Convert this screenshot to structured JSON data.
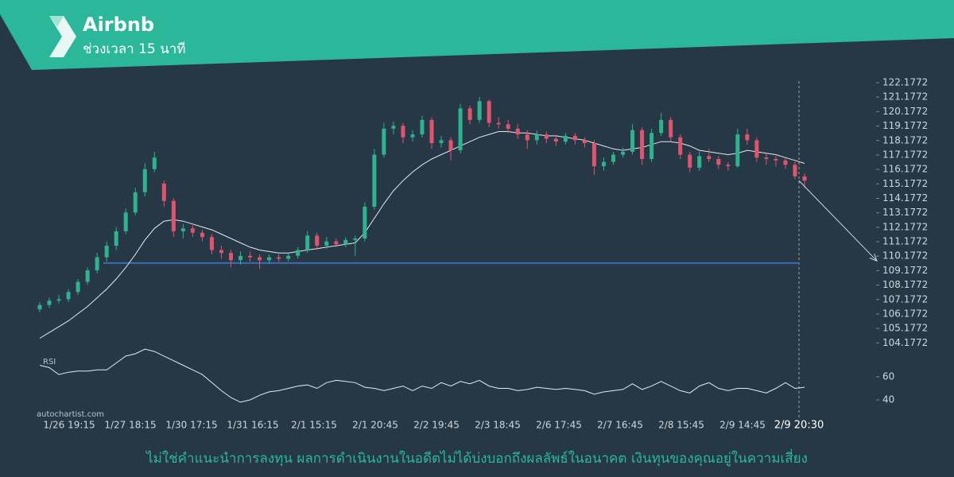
{
  "chart_data": {
    "type": "candlestick",
    "title": "Airbnb",
    "subtitle": "ช่วงเวลา 15 นาที",
    "ylim": [
      103.7,
      122.4
    ],
    "yticks": [
      104.1772,
      105.1772,
      106.1772,
      107.1772,
      108.1772,
      109.1772,
      110.1772,
      111.1772,
      112.1772,
      113.1772,
      114.1772,
      115.1772,
      116.1772,
      117.1772,
      118.1772,
      119.1772,
      120.1772,
      121.1772,
      122.1772
    ],
    "time_labels": [
      "1/26 19:15",
      "1/27 18:15",
      "1/30 17:15",
      "1/31 16:15",
      "2/1 15:15",
      "2/1 20:45",
      "2/2 19:45",
      "2/3 18:45",
      "2/6 17:45",
      "2/7 16:45",
      "2/8 15:45",
      "2/9 14:45"
    ],
    "current_time": "2/9 20:30",
    "up_color": "#2fb38f",
    "down_color": "#e0546d",
    "candles": [
      [
        106.5,
        107.0,
        106.3,
        106.8
      ],
      [
        106.8,
        107.3,
        106.6,
        107.1
      ],
      [
        107.1,
        107.5,
        106.9,
        107.2
      ],
      [
        107.2,
        107.9,
        107.0,
        107.7
      ],
      [
        107.7,
        108.6,
        107.5,
        108.4
      ],
      [
        108.4,
        109.4,
        108.2,
        109.2
      ],
      [
        109.2,
        110.4,
        109.0,
        110.1
      ],
      [
        110.1,
        111.2,
        109.8,
        110.9
      ],
      [
        110.9,
        112.2,
        110.6,
        111.9
      ],
      [
        111.9,
        113.5,
        111.7,
        113.2
      ],
      [
        113.2,
        114.9,
        113.0,
        114.6
      ],
      [
        114.6,
        116.6,
        114.3,
        116.2
      ],
      [
        116.2,
        117.4,
        116.0,
        117.0
      ],
      [
        115.2,
        115.4,
        113.6,
        114.0
      ],
      [
        114.0,
        114.2,
        111.5,
        111.9
      ],
      [
        111.9,
        112.4,
        111.4,
        112.1
      ],
      [
        112.1,
        112.3,
        111.5,
        111.8
      ],
      [
        111.8,
        112.0,
        111.2,
        111.5
      ],
      [
        111.5,
        111.7,
        110.3,
        110.6
      ],
      [
        110.6,
        110.9,
        110.0,
        110.4
      ],
      [
        110.4,
        110.6,
        109.4,
        109.9
      ],
      [
        109.9,
        110.5,
        109.6,
        110.2
      ],
      [
        110.2,
        110.5,
        109.8,
        110.1
      ],
      [
        110.1,
        110.3,
        109.3,
        109.9
      ],
      [
        109.9,
        110.3,
        109.7,
        110.1
      ],
      [
        110.1,
        110.3,
        109.8,
        110.0
      ],
      [
        110.0,
        110.4,
        109.8,
        110.2
      ],
      [
        110.2,
        110.8,
        110.0,
        110.6
      ],
      [
        110.6,
        111.9,
        110.4,
        111.6
      ],
      [
        111.6,
        111.8,
        110.6,
        110.9
      ],
      [
        110.9,
        111.5,
        110.7,
        111.2
      ],
      [
        111.2,
        111.4,
        110.8,
        111.0
      ],
      [
        111.0,
        111.5,
        110.8,
        111.3
      ],
      [
        111.3,
        111.6,
        110.2,
        111.4
      ],
      [
        111.4,
        113.9,
        111.2,
        113.6
      ],
      [
        113.6,
        117.6,
        113.4,
        117.2
      ],
      [
        117.2,
        119.4,
        117.0,
        119.0
      ],
      [
        119.0,
        119.5,
        118.6,
        119.2
      ],
      [
        119.2,
        119.4,
        118.0,
        118.4
      ],
      [
        118.4,
        118.9,
        118.1,
        118.6
      ],
      [
        118.6,
        119.9,
        118.4,
        119.6
      ],
      [
        119.6,
        119.8,
        117.6,
        118.0
      ],
      [
        118.0,
        118.5,
        117.7,
        118.2
      ],
      [
        118.2,
        118.4,
        116.8,
        117.5
      ],
      [
        117.5,
        120.7,
        117.3,
        120.4
      ],
      [
        120.4,
        120.6,
        119.3,
        119.6
      ],
      [
        119.6,
        121.2,
        119.4,
        120.9
      ],
      [
        120.9,
        121.0,
        119.1,
        119.4
      ],
      [
        119.4,
        119.8,
        119.0,
        119.3
      ],
      [
        119.3,
        119.6,
        118.7,
        119.0
      ],
      [
        119.0,
        119.3,
        118.3,
        118.6
      ],
      [
        118.6,
        118.9,
        117.6,
        118.2
      ],
      [
        118.2,
        118.9,
        117.9,
        118.6
      ],
      [
        118.6,
        118.8,
        118.0,
        118.3
      ],
      [
        118.3,
        118.5,
        117.8,
        118.1
      ],
      [
        118.1,
        118.7,
        117.9,
        118.5
      ],
      [
        118.5,
        118.7,
        117.9,
        118.2
      ],
      [
        118.2,
        118.4,
        117.7,
        118.0
      ],
      [
        118.0,
        118.2,
        115.8,
        116.4
      ],
      [
        116.4,
        117.0,
        116.1,
        116.7
      ],
      [
        116.7,
        117.4,
        116.5,
        117.2
      ],
      [
        117.2,
        117.7,
        117.0,
        117.4
      ],
      [
        117.4,
        119.3,
        117.2,
        118.9
      ],
      [
        118.9,
        119.1,
        116.5,
        116.9
      ],
      [
        116.9,
        119.0,
        116.7,
        118.7
      ],
      [
        118.7,
        120.1,
        118.5,
        119.6
      ],
      [
        119.6,
        119.8,
        118.1,
        118.4
      ],
      [
        118.4,
        118.6,
        116.9,
        117.2
      ],
      [
        117.2,
        117.4,
        116.0,
        116.3
      ],
      [
        116.3,
        117.4,
        116.1,
        117.1
      ],
      [
        117.1,
        117.6,
        116.7,
        116.9
      ],
      [
        116.9,
        117.1,
        116.2,
        116.5
      ],
      [
        116.5,
        116.7,
        116.1,
        116.4
      ],
      [
        116.4,
        119.0,
        116.3,
        118.6
      ],
      [
        118.6,
        119.0,
        117.9,
        118.2
      ],
      [
        118.2,
        118.4,
        116.7,
        117.0
      ],
      [
        117.0,
        117.3,
        116.5,
        116.9
      ],
      [
        116.9,
        117.1,
        116.4,
        116.8
      ],
      [
        116.8,
        117.0,
        116.2,
        116.5
      ],
      [
        116.5,
        116.7,
        115.5,
        115.7
      ],
      [
        115.7,
        115.9,
        114.9,
        115.4
      ]
    ],
    "ma": [
      104.5,
      104.9,
      105.3,
      105.7,
      106.2,
      106.7,
      107.3,
      107.9,
      108.6,
      109.4,
      110.3,
      111.3,
      112.1,
      112.6,
      112.7,
      112.6,
      112.4,
      112.2,
      112.0,
      111.7,
      111.4,
      111.1,
      110.8,
      110.6,
      110.5,
      110.4,
      110.4,
      110.5,
      110.6,
      110.7,
      110.8,
      110.9,
      111.0,
      111.1,
      111.8,
      112.8,
      113.8,
      114.7,
      115.4,
      116.0,
      116.5,
      116.9,
      117.2,
      117.5,
      117.8,
      118.1,
      118.4,
      118.6,
      118.8,
      118.8,
      118.7,
      118.7,
      118.6,
      118.5,
      118.5,
      118.4,
      118.3,
      118.2,
      118.0,
      117.8,
      117.6,
      117.5,
      117.6,
      117.7,
      117.9,
      118.1,
      118.1,
      118.0,
      117.8,
      117.5,
      117.4,
      117.3,
      117.2,
      117.3,
      117.5,
      117.4,
      117.3,
      117.2,
      117.0,
      116.8,
      116.6
    ],
    "support_level": 109.7,
    "support_color": "#3d6bb3",
    "forecast_target": 109.85,
    "rsi": {
      "label": "RSI",
      "ylim": [
        30,
        90
      ],
      "yticks": [
        40,
        60
      ],
      "values": [
        70,
        68,
        62,
        64,
        65,
        65,
        66,
        66,
        72,
        78,
        80,
        84,
        82,
        78,
        74,
        70,
        66,
        62,
        55,
        48,
        42,
        38,
        40,
        44,
        47,
        48,
        50,
        52,
        53,
        50,
        55,
        57,
        56,
        55,
        51,
        50,
        48,
        50,
        52,
        48,
        52,
        50,
        55,
        52,
        56,
        54,
        57,
        52,
        50,
        50,
        48,
        49,
        51,
        50,
        49,
        50,
        49,
        48,
        45,
        47,
        48,
        49,
        54,
        49,
        52,
        56,
        52,
        48,
        46,
        52,
        55,
        50,
        48,
        50,
        50,
        48,
        46,
        50,
        55,
        50,
        51
      ]
    }
  },
  "watermark": "autochartist.com",
  "disclaimer": "ไม่ใช่คำแนะนำการลงทุน ผลการดำเนินงานในอดีตไม่ได้บ่งบอกถึงผลลัพธ์ในอนาคต เงินทุนของคุณอยู่ในความเสี่ยง"
}
